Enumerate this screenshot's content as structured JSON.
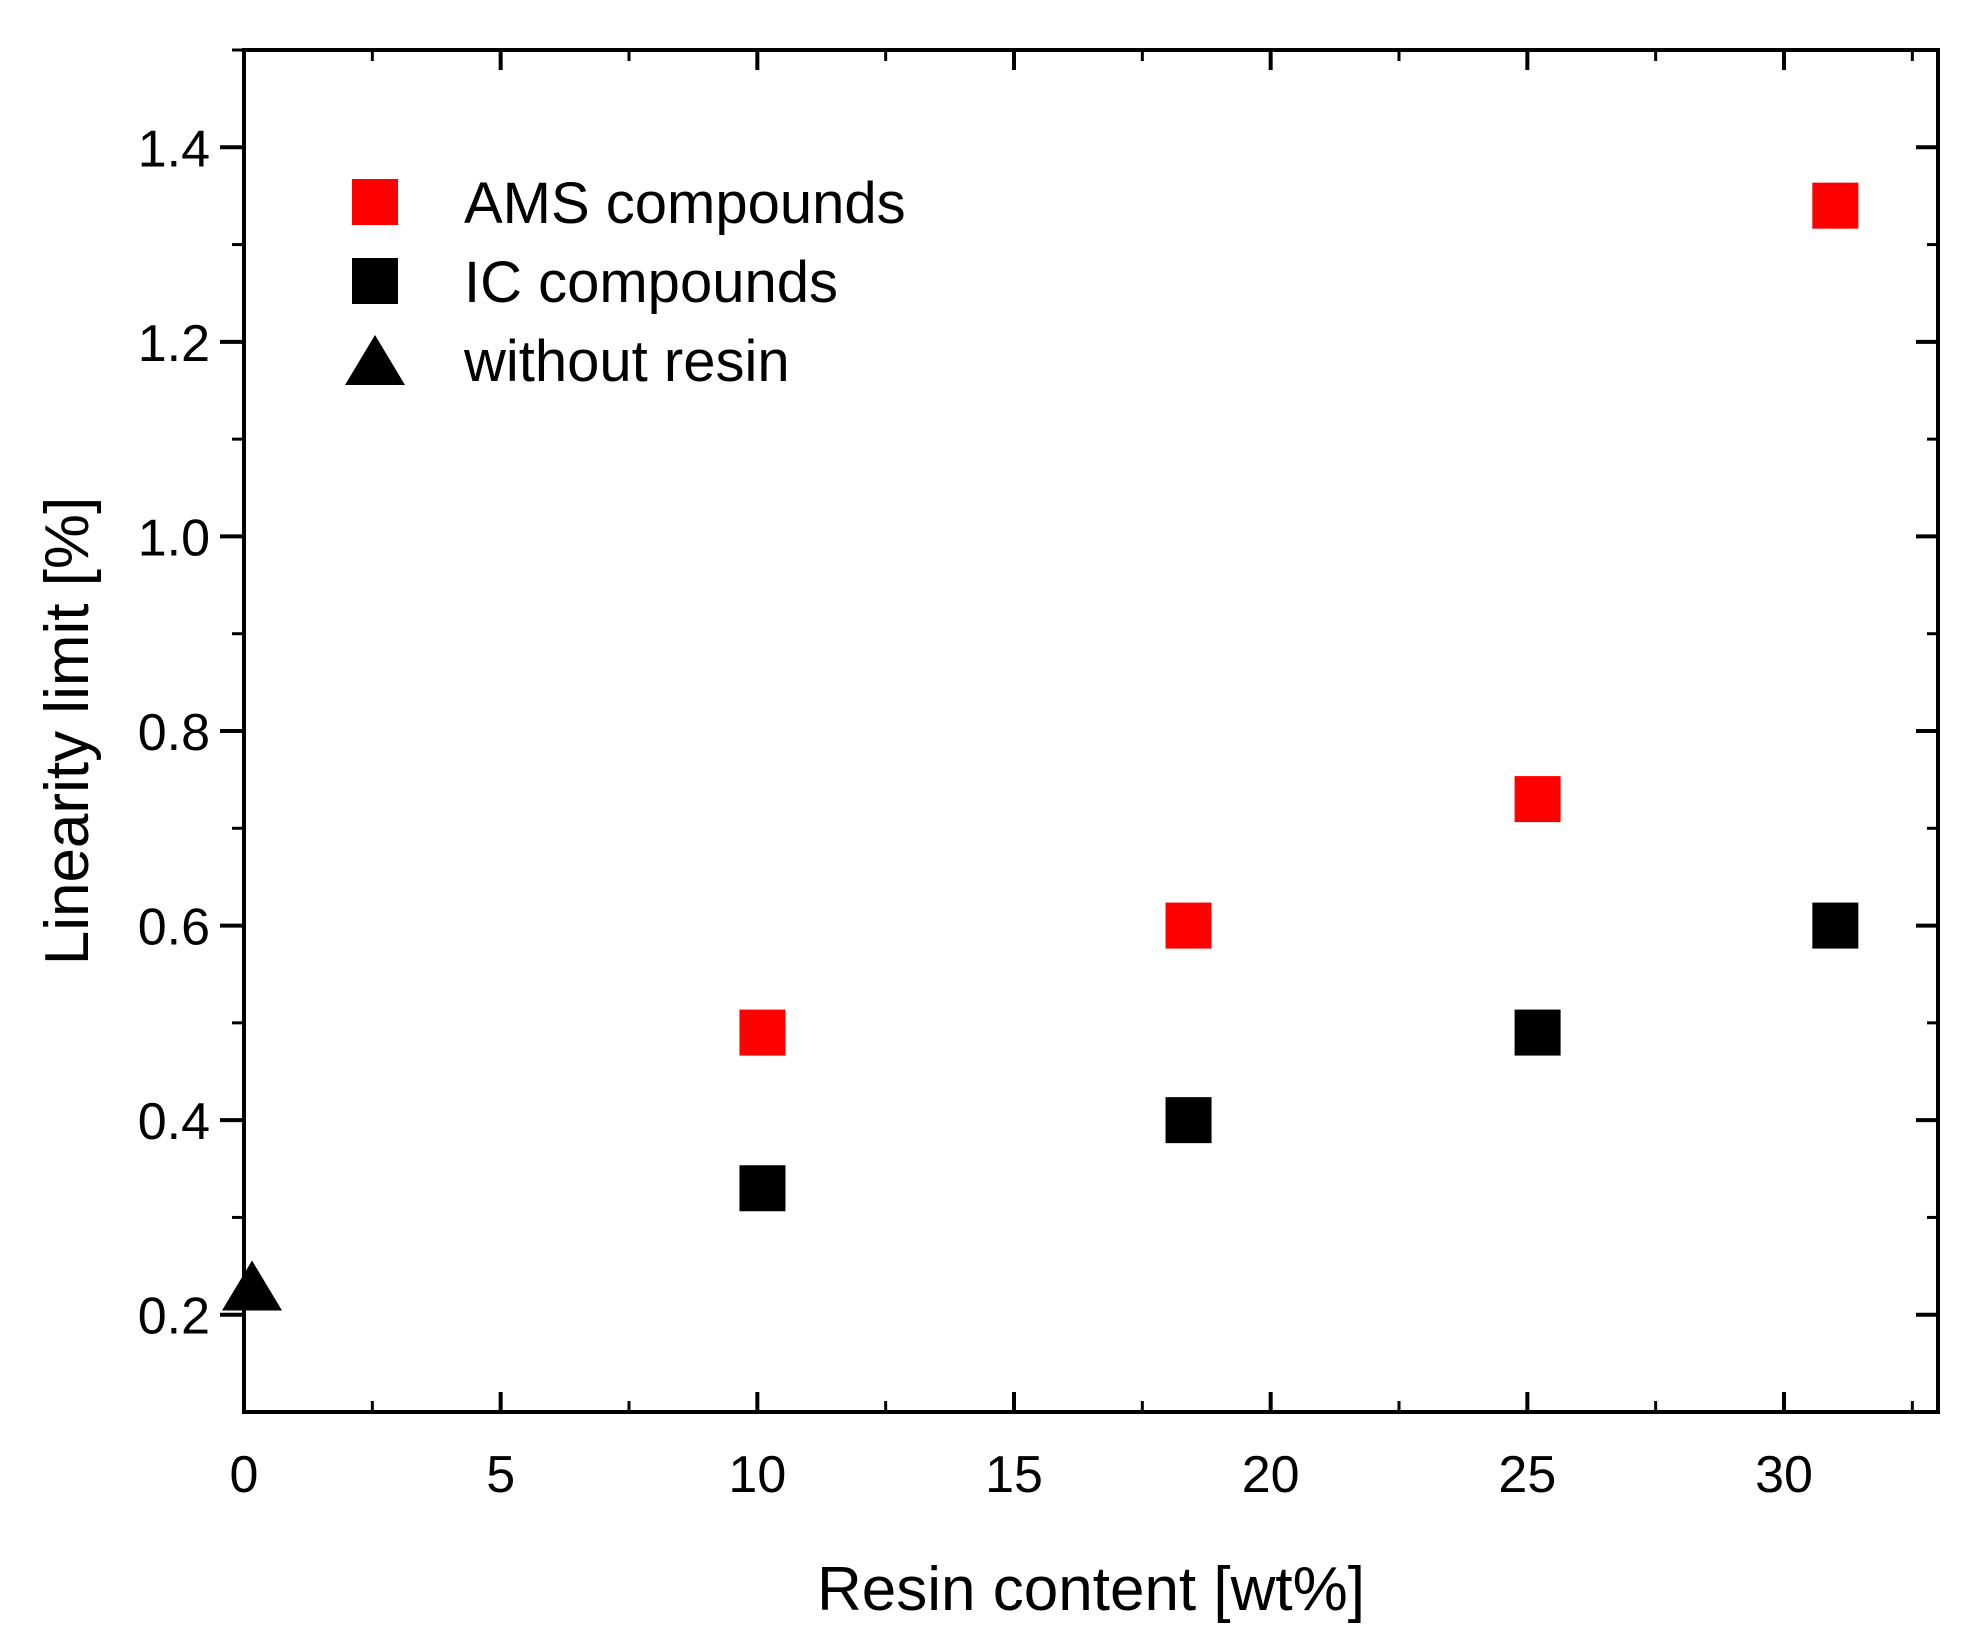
{
  "chart_data": {
    "type": "scatter",
    "title": "",
    "xlabel": "Resin content [wt%]",
    "ylabel": "Linearity limit [%]",
    "xlim": [
      0,
      33
    ],
    "ylim": [
      0.1,
      1.5
    ],
    "x_ticks": [
      0,
      5,
      10,
      15,
      20,
      25,
      30
    ],
    "x_tick_labels": [
      "0",
      "5",
      "10",
      "15",
      "20",
      "25",
      "30"
    ],
    "y_ticks": [
      0.2,
      0.4,
      0.6,
      0.8,
      1.0,
      1.2,
      1.4
    ],
    "y_tick_labels": [
      "0.2",
      "0.4",
      "0.6",
      "0.8",
      "1.0",
      "1.2",
      "1.4"
    ],
    "grid": false,
    "legend_position": "top-left",
    "series": [
      {
        "name": "AMS compounds",
        "marker": "square",
        "color": "#ff0000",
        "points": [
          [
            10.1,
            0.49
          ],
          [
            18.4,
            0.6
          ],
          [
            25.2,
            0.73
          ],
          [
            31.0,
            1.34
          ]
        ]
      },
      {
        "name": "IC compounds",
        "marker": "square",
        "color": "#000000",
        "points": [
          [
            10.1,
            0.33
          ],
          [
            18.4,
            0.4
          ],
          [
            25.2,
            0.49
          ],
          [
            31.0,
            0.6
          ]
        ]
      },
      {
        "name": "without resin",
        "marker": "triangle",
        "color": "#000000",
        "points": [
          [
            0.1,
            0.23
          ]
        ]
      }
    ]
  }
}
